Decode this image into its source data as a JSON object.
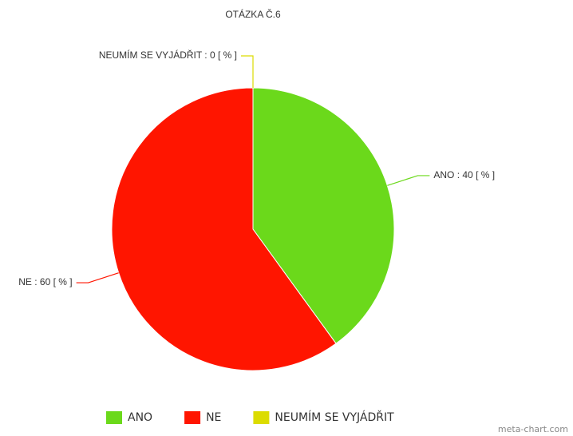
{
  "chart_data": {
    "type": "pie",
    "title": "OTÁZKA Č.6",
    "categories": [
      "ANO",
      "NE",
      "NEUMÍM SE VYJÁDŘIT"
    ],
    "values": [
      40,
      60,
      0
    ],
    "value_labels": [
      "ANO : 40 [ % ]",
      "NE : 60 [ % ]",
      "NEUMÍM SE VYJÁDŘIT : 0 [ % ]"
    ],
    "colors": [
      "#6bd91b",
      "#ff1500",
      "#dcdc00"
    ],
    "legend": "bottom",
    "credit": "meta-chart.com"
  }
}
